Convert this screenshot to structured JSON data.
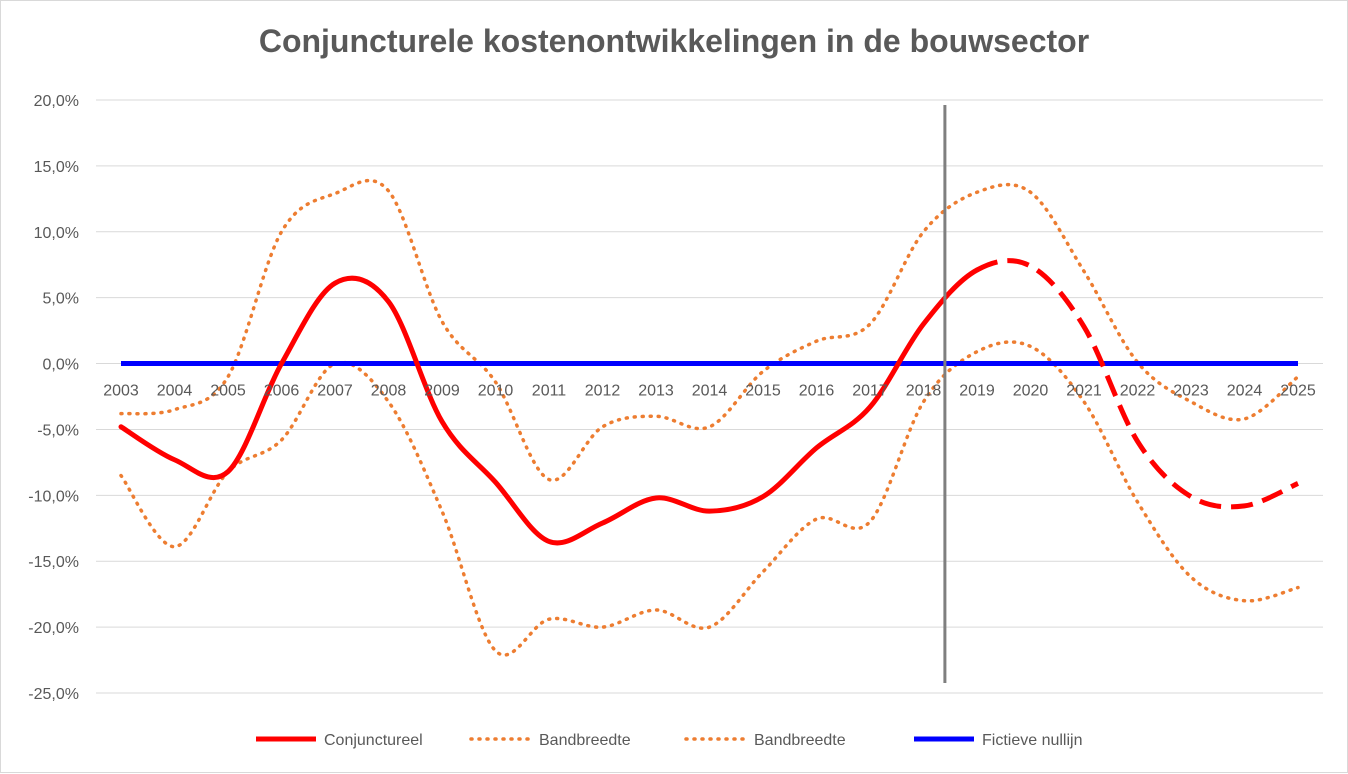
{
  "chart_data": {
    "type": "line",
    "title": "Conjuncturele kostenontwikkelingen in de bouwsector",
    "xlabel": "",
    "ylabel": "",
    "x": [
      "2003",
      "2004",
      "2005",
      "2006",
      "2007",
      "2008",
      "2009",
      "2010",
      "2011",
      "2012",
      "2013",
      "2014",
      "2015",
      "2016",
      "2017",
      "2018",
      "2019",
      "2020",
      "2021",
      "2022",
      "2023",
      "2024",
      "2025"
    ],
    "ylim": [
      -25,
      20
    ],
    "yticks": [
      "20,0%",
      "15,0%",
      "10,0%",
      "5,0%",
      "0,0%",
      "-5,0%",
      "-10,0%",
      "-15,0%",
      "-20,0%",
      "-25,0%"
    ],
    "ytick_values": [
      20,
      15,
      10,
      5,
      0,
      -5,
      -10,
      -15,
      -20,
      -25
    ],
    "grid": true,
    "legend_position": "bottom",
    "vertical_marker_year": 2018.4,
    "forecast_from": "2019",
    "series": [
      {
        "name": "Conjunctureel",
        "color": "#ff0000",
        "style": "solid-then-dashed",
        "values": [
          -4.8,
          -7.3,
          -8.2,
          0.0,
          6.1,
          4.7,
          -4.4,
          -9.0,
          -13.5,
          -12.1,
          -10.2,
          -11.2,
          -10.1,
          -6.4,
          -3.3,
          3.0,
          7.1,
          7.4,
          2.8,
          -5.9,
          -10.1,
          -10.8,
          -9.1
        ]
      },
      {
        "name": "Bandbreedte",
        "color": "#ed7d31",
        "style": "dotted",
        "values": [
          -3.8,
          -3.5,
          -1.0,
          10.0,
          12.9,
          13.1,
          3.2,
          -1.4,
          -8.8,
          -4.8,
          -4.0,
          -4.8,
          -0.6,
          1.7,
          3.0,
          10.0,
          13.0,
          13.0,
          7.0,
          0.1,
          -2.9,
          -4.2,
          -1.0
        ]
      },
      {
        "name": "Bandbreedte",
        "color": "#ed7d31",
        "style": "dotted",
        "values": [
          -8.5,
          -13.9,
          -8.2,
          -5.8,
          0.0,
          -2.9,
          -11.2,
          -21.8,
          -19.4,
          -20.0,
          -18.7,
          -20.0,
          -15.8,
          -11.8,
          -12.0,
          -2.9,
          0.9,
          1.3,
          -2.9,
          -10.5,
          -16.2,
          -18.0,
          -17.0
        ]
      },
      {
        "name": "Fictieve nullijn",
        "color": "#0000ff",
        "style": "solid",
        "values": [
          0,
          0,
          0,
          0,
          0,
          0,
          0,
          0,
          0,
          0,
          0,
          0,
          0,
          0,
          0,
          0,
          0,
          0,
          0,
          0,
          0,
          0,
          0
        ]
      }
    ]
  }
}
